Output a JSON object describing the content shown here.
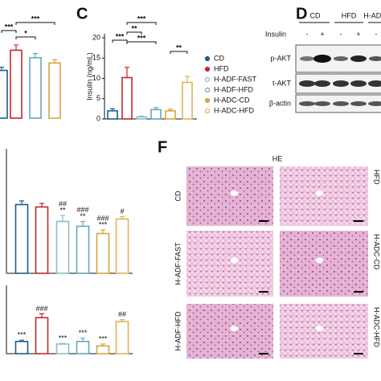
{
  "chart_data": [
    {
      "type": "bar",
      "values": [
        45,
        64,
        57,
        52
      ],
      "errors": [
        3,
        5,
        4,
        3
      ],
      "colors": [
        "#1b5e8c",
        "#c62828",
        "#6aa5bd",
        "#d9a441"
      ],
      "ylim": [
        0,
        100
      ],
      "brackets": [
        "***",
        "*",
        "***"
      ]
    },
    {
      "type": "bar",
      "title": "C",
      "ylabel": "Insulin (ng/mL)",
      "categories": [
        "CD",
        "HFD",
        "H-ADF-FAST",
        "H-ADF-HFD",
        "H-ADC-CD",
        "H-ADC-HFD"
      ],
      "values": [
        2,
        10.2,
        0.5,
        2.3,
        2,
        9
      ],
      "errors": [
        0.5,
        2.5,
        0.2,
        0.5,
        0.4,
        1.5
      ],
      "colors": [
        "#1b5e8c",
        "#c62828",
        "#8bbccc",
        "#6aa5bd",
        "#d9a441",
        "#e0b25a"
      ],
      "ylim": [
        0,
        20
      ],
      "yticks": [
        0,
        5,
        10,
        15,
        20
      ],
      "brackets": [
        "***",
        "**",
        "***",
        "***",
        "**"
      ]
    },
    {
      "type": "bar",
      "values": [
        57,
        55,
        43,
        39,
        33,
        45
      ],
      "errors": [
        3,
        3,
        5,
        4,
        3,
        2
      ],
      "colors": [
        "#1b5e8c",
        "#c62828",
        "#8bbccc",
        "#6aa5bd",
        "#d9a441",
        "#e0b25a"
      ],
      "ylim": [
        0,
        100
      ],
      "annotations": [
        [],
        [],
        [
          "##",
          "**"
        ],
        [
          "###",
          "**"
        ],
        [
          "###",
          "***"
        ],
        [
          "#"
        ]
      ]
    },
    {
      "type": "bar",
      "values": [
        19,
        56,
        15,
        19,
        12,
        50
      ],
      "errors": [
        2,
        6,
        1,
        5,
        3,
        3
      ],
      "colors": [
        "#1b5e8c",
        "#c62828",
        "#8bbccc",
        "#6aa5bd",
        "#d9a441",
        "#e0b25a"
      ],
      "ylim": [
        0,
        100
      ],
      "annotations": [
        [
          "***"
        ],
        [
          "###"
        ],
        [
          "***"
        ],
        [
          "***"
        ],
        [
          "***"
        ],
        [
          "##"
        ]
      ]
    }
  ],
  "blot": {
    "title": "D",
    "treatment": "Insulin",
    "groups": [
      "CD",
      "HFD",
      "H-ADF"
    ],
    "signs": [
      "-",
      "+",
      "-",
      "+",
      "-"
    ],
    "rows": [
      "p-AKT",
      "t-AKT",
      "β-actin"
    ]
  },
  "histology": {
    "title": "F",
    "stain": "HE",
    "left_labels": [
      "CD",
      "H-ADF-FAST",
      "H-ADF-HFD"
    ],
    "right_labels": [
      "HFD",
      "H-ADC-CD",
      "H-ADC-HFD"
    ]
  }
}
